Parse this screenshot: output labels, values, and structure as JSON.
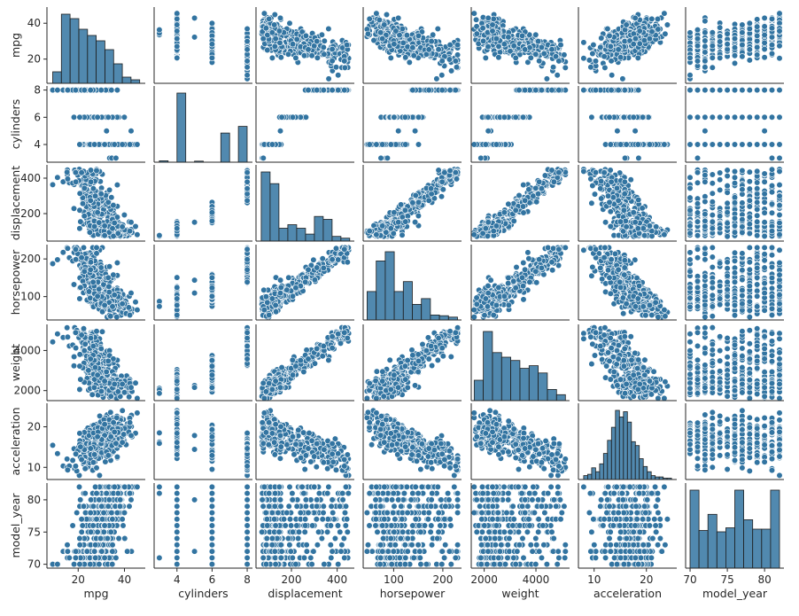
{
  "chart_data": {
    "type": "pairplot",
    "variables": [
      "mpg",
      "cylinders",
      "displacement",
      "horsepower",
      "weight",
      "acceleration",
      "model_year"
    ],
    "colors": {
      "marker": "#3274A1",
      "edge": "#ffffff",
      "axis": "#262626",
      "hist_edge": "#1f1f1f"
    },
    "axes": {
      "mpg": {
        "range": [
          6.5,
          49
        ],
        "ticks": [
          {
            "v": 20,
            "label": "20"
          },
          {
            "v": 40,
            "label": "40"
          }
        ]
      },
      "cylinders": {
        "range": [
          2.7,
          8.3
        ],
        "ticks": [
          {
            "v": 4,
            "label": "4"
          },
          {
            "v": 6,
            "label": "6"
          },
          {
            "v": 8,
            "label": "8"
          }
        ]
      },
      "displacement": {
        "range": [
          45,
          475
        ],
        "ticks": [
          {
            "v": 200,
            "label": "200"
          },
          {
            "v": 400,
            "label": "400"
          }
        ]
      },
      "horsepower": {
        "range": [
          38,
          238
        ],
        "ticks": [
          {
            "v": 100,
            "label": "100"
          },
          {
            "v": 200,
            "label": "200"
          }
        ]
      },
      "weight": {
        "range": [
          1500,
          5300
        ],
        "ticks": [
          {
            "v": 2000,
            "label": "2000"
          },
          {
            "v": 4000,
            "label": "4000"
          }
        ]
      },
      "acceleration": {
        "range": [
          7,
          25.8
        ],
        "ticks": [
          {
            "v": 10,
            "label": "10"
          },
          {
            "v": 20,
            "label": "20"
          }
        ]
      },
      "model_year": {
        "range": [
          69.4,
          82.6
        ],
        "ticks": [
          {
            "v": 70,
            "label": "70"
          },
          {
            "v": 75,
            "label": "75"
          },
          {
            "v": 80,
            "label": "80"
          }
        ]
      }
    },
    "diagonal_histograms": {
      "mpg": {
        "edges": [
          9,
          12.76,
          16.52,
          20.28,
          24.04,
          27.8,
          31.56,
          35.32,
          39.08,
          42.84,
          46.6
        ],
        "counts": [
          13,
          78,
          73,
          61,
          54,
          48,
          38,
          22,
          7,
          4
        ]
      },
      "cylinders": {
        "edges": [
          3,
          3.5,
          4,
          4.5,
          5,
          5.5,
          6,
          6.5,
          7,
          7.5,
          8
        ],
        "counts": [
          4,
          0,
          199,
          0,
          3,
          0,
          0,
          84,
          0,
          103
        ]
      },
      "displacement": {
        "edges": [
          68,
          106.7,
          145.4,
          184.1,
          222.8,
          261.5,
          300.2,
          338.9,
          377.6,
          416.3,
          455
        ],
        "counts": [
          118,
          98,
          22,
          28,
          22,
          12,
          42,
          37,
          8,
          5
        ]
      },
      "horsepower": {
        "edges": [
          46,
          64.4,
          82.8,
          101.2,
          119.6,
          138,
          156.4,
          174.8,
          193.2,
          211.6,
          230
        ],
        "counts": [
          40,
          83,
          96,
          40,
          54,
          22,
          30,
          7,
          6,
          4
        ]
      },
      "weight": {
        "edges": [
          1613,
          1966.7,
          2320.4,
          2674.1,
          3027.8,
          3381.5,
          3735.2,
          4089,
          4442.6,
          4796.3,
          5140
        ],
        "counts": [
          31,
          105,
          73,
          66,
          61,
          49,
          53,
          42,
          17,
          9
        ]
      },
      "acceleration": {
        "edges": [
          8,
          8.76,
          9.52,
          10.28,
          11.04,
          11.8,
          12.56,
          13.32,
          14.08,
          14.84,
          15.6,
          16.36,
          17.12,
          17.88,
          18.64,
          19.4,
          20.16,
          20.92,
          21.68,
          22.44,
          23.2,
          23.96,
          24.8
        ],
        "counts": [
          3,
          4,
          9,
          6,
          12,
          20,
          30,
          40,
          53,
          48,
          52,
          44,
          29,
          26,
          16,
          10,
          6,
          3,
          2,
          2,
          1,
          1
        ]
      },
      "model_year": {
        "edges": [
          70,
          71.2,
          72.4,
          73.6,
          74.8,
          76,
          77.2,
          78.4,
          79.6,
          80.8,
          82
        ],
        "counts": [
          58,
          28,
          40,
          27,
          30,
          58,
          36,
          29,
          29,
          58
        ]
      }
    },
    "scatter": "model-generated cloud (Auto MPG style relationships)"
  }
}
